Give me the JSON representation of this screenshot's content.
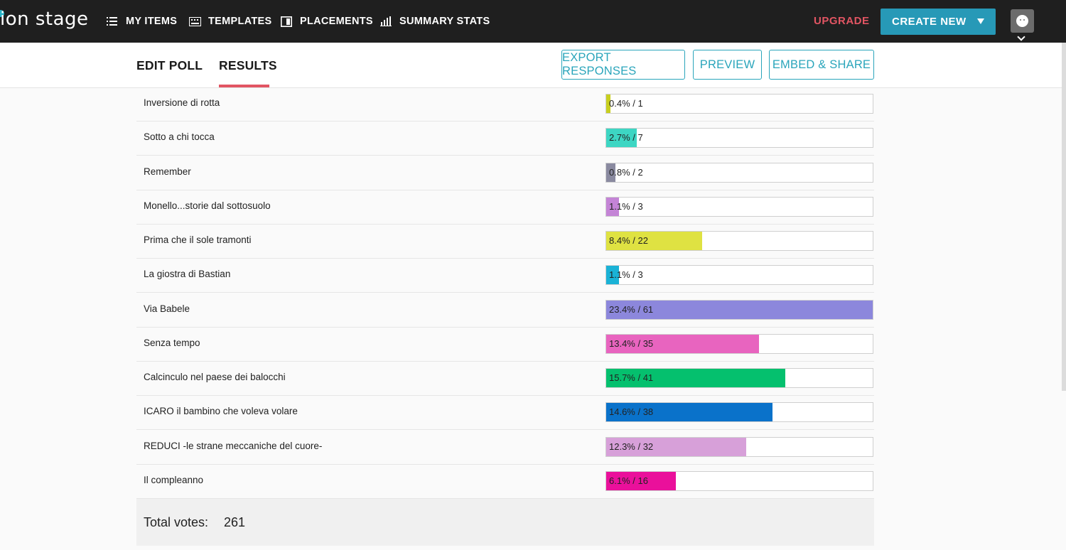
{
  "header": {
    "logo_text": "ion stage",
    "nav": [
      {
        "label": "MY ITEMS",
        "icon": "list-icon"
      },
      {
        "label": "TEMPLATES",
        "icon": "keyboard-icon"
      },
      {
        "label": "PLACEMENTS",
        "icon": "placement-icon"
      },
      {
        "label": "SUMMARY STATS",
        "icon": "bar-chart-icon"
      }
    ],
    "upgrade_label": "UPGRADE",
    "create_new_label": "CREATE NEW"
  },
  "subheader": {
    "tabs": [
      {
        "label": "EDIT POLL",
        "active": false
      },
      {
        "label": "RESULTS",
        "active": true
      }
    ],
    "buttons": {
      "export": "EXPORT RESPONSES",
      "preview": "PREVIEW",
      "embed": "EMBED & SHARE"
    }
  },
  "results": [
    {
      "label": "Inversione di rotta",
      "percent": 0.4,
      "votes": 1,
      "text": "0.4% / 1",
      "color": "#c8cf1e"
    },
    {
      "label": "Sotto a chi tocca",
      "percent": 2.7,
      "votes": 7,
      "text": "2.7% / 7",
      "color": "#3dd6c3"
    },
    {
      "label": "Remember",
      "percent": 0.8,
      "votes": 2,
      "text": "0.8% / 2",
      "color": "#8a8aa0"
    },
    {
      "label": "Monello...storie dal sottosuolo",
      "percent": 1.1,
      "votes": 3,
      "text": "1.1% / 3",
      "color": "#c484d6"
    },
    {
      "label": "Prima che il sole tramonti",
      "percent": 8.4,
      "votes": 22,
      "text": "8.4% / 22",
      "color": "#dfe242"
    },
    {
      "label": "La giostra di Bastian",
      "percent": 1.1,
      "votes": 3,
      "text": "1.1% / 3",
      "color": "#1ab2d6"
    },
    {
      "label": "Via Babele",
      "percent": 23.4,
      "votes": 61,
      "text": "23.4% / 61",
      "color": "#8c87dc"
    },
    {
      "label": "Senza tempo",
      "percent": 13.4,
      "votes": 35,
      "text": "13.4% / 35",
      "color": "#e864bf"
    },
    {
      "label": "Calcinculo nel paese dei balocchi",
      "percent": 15.7,
      "votes": 41,
      "text": "15.7% / 41",
      "color": "#05c06e"
    },
    {
      "label": "ICARO il bambino che voleva volare",
      "percent": 14.6,
      "votes": 38,
      "text": "14.6% / 38",
      "color": "#0a72ca"
    },
    {
      "label": "REDUCI -le strane meccaniche del cuore-",
      "percent": 12.3,
      "votes": 32,
      "text": "12.3% / 32",
      "color": "#d7a0d9"
    },
    {
      "label": "Il compleanno",
      "percent": 6.1,
      "votes": 16,
      "text": "6.1% / 16",
      "color": "#ea109b"
    }
  ],
  "results_max_percent": 23.4,
  "total": {
    "label": "Total votes:",
    "value": "261"
  }
}
